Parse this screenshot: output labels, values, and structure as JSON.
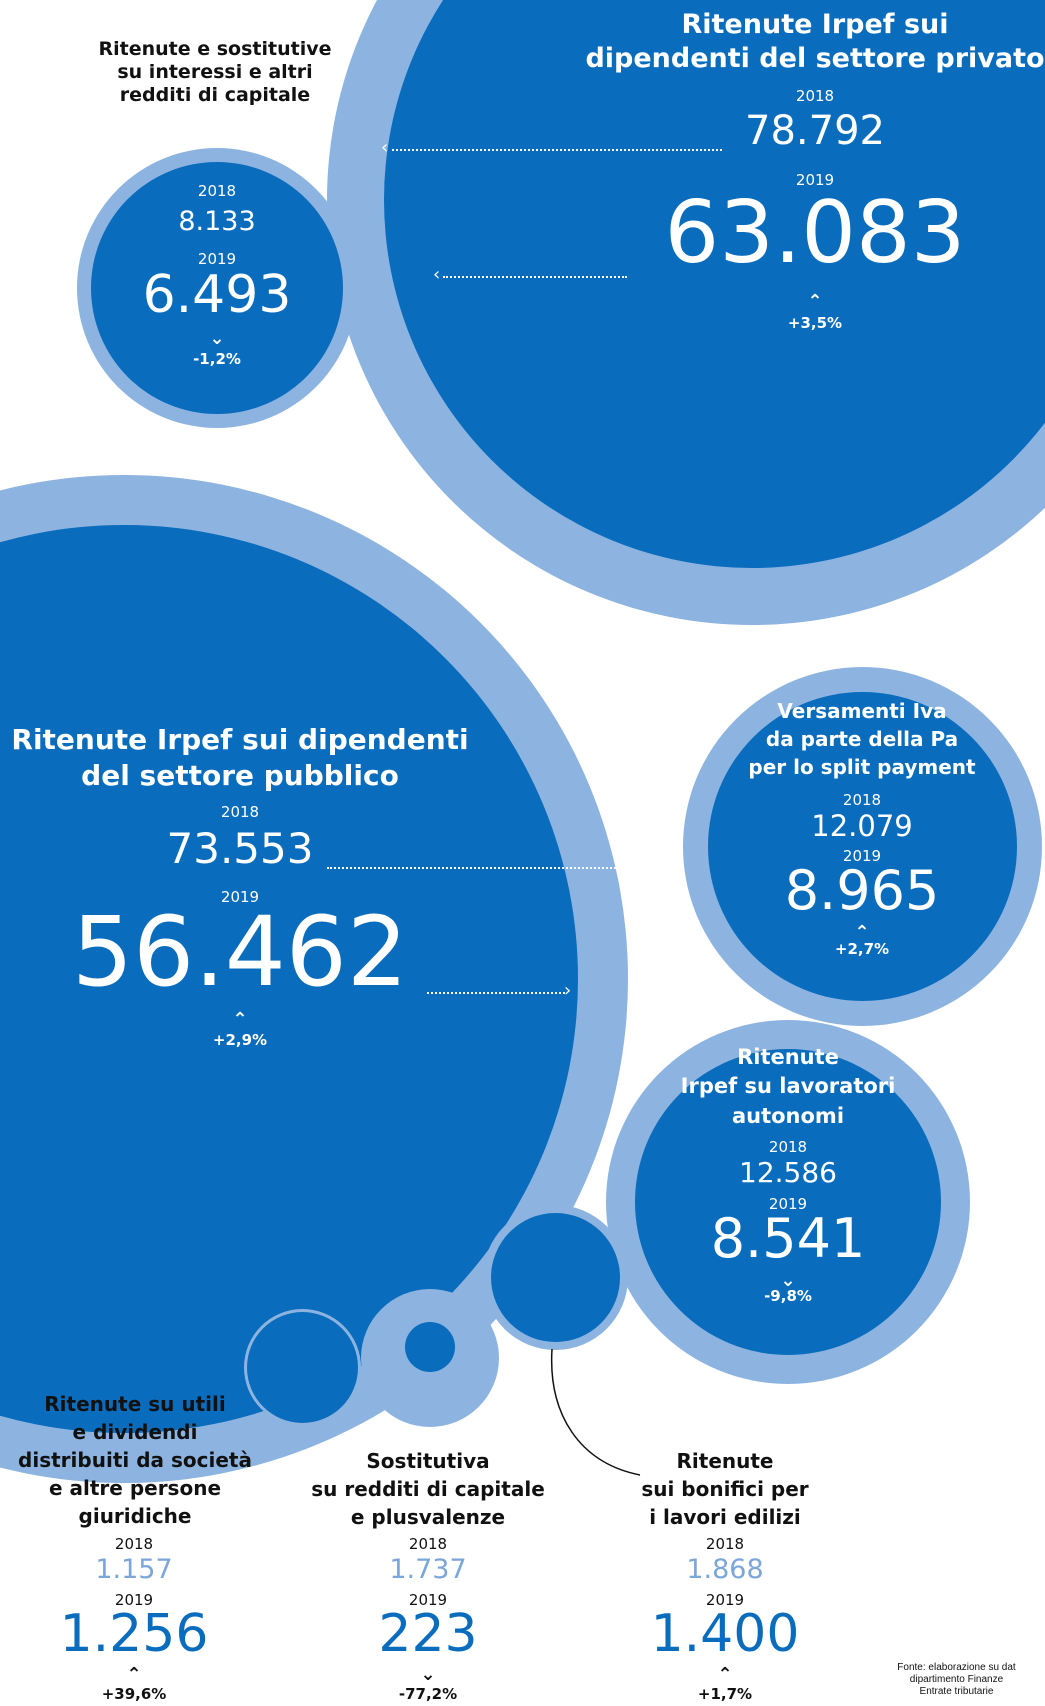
{
  "colors": {
    "dark_blue": "#0a6cbc",
    "light_blue": "#8db4e0",
    "text_dark": "#111111",
    "text_white": "#ffffff"
  },
  "icons": {
    "up": "up-chevron-icon",
    "down": "down-chevron-icon"
  },
  "items": {
    "interessi": {
      "title_lines": [
        "Ritenute e sostitutive",
        "su interessi e altri",
        "redditi di capitale"
      ],
      "year_2018": "2018",
      "value_2018": "8.133",
      "year_2019": "2019",
      "value_2019": "6.493",
      "change": "-1,2%",
      "direction": "down"
    },
    "privato": {
      "title_lines": [
        "Ritenute Irpef sui",
        "dipendenti del settore privato"
      ],
      "year_2018": "2018",
      "value_2018": "78.792",
      "year_2019": "2019",
      "value_2019": "63.083",
      "change": "+3,5%",
      "direction": "up"
    },
    "pubblico": {
      "title_lines": [
        "Ritenute Irpef sui dipendenti",
        "del settore pubblico"
      ],
      "year_2018": "2018",
      "value_2018": "73.553",
      "year_2019": "2019",
      "value_2019": "56.462",
      "change": "+2,9%",
      "direction": "up"
    },
    "iva": {
      "title_lines": [
        "Versamenti Iva",
        "da parte della Pa",
        "per lo split payment"
      ],
      "year_2018": "2018",
      "value_2018": "12.079",
      "year_2019": "2019",
      "value_2019": "8.965",
      "change": "+2,7%",
      "direction": "up"
    },
    "autonomi": {
      "title_lines": [
        "Ritenute",
        "Irpef su lavoratori",
        "autonomi"
      ],
      "year_2018": "2018",
      "value_2018": "12.586",
      "year_2019": "2019",
      "value_2019": "8.541",
      "change": "-9,8%",
      "direction": "down"
    },
    "utili": {
      "title_lines": [
        "Ritenute su utili",
        "e dividendi",
        "distribuiti da società",
        "e altre persone",
        "giuridiche"
      ],
      "year_2018": "2018",
      "value_2018": "1.157",
      "year_2019": "2019",
      "value_2019": "1.256",
      "change": "+39,6%",
      "direction": "up"
    },
    "plusvalenze": {
      "title_lines": [
        "Sostitutiva",
        "su redditi di capitale",
        "e plusvalenze"
      ],
      "year_2018": "2018",
      "value_2018": "1.737",
      "year_2019": "2019",
      "value_2019": "223",
      "change": "-77,2%",
      "direction": "down"
    },
    "bonifici": {
      "title_lines": [
        "Ritenute",
        "sui bonifici per",
        "i lavori edilizi"
      ],
      "year_2018": "2018",
      "value_2018": "1.868",
      "year_2019": "2019",
      "value_2019": "1.400",
      "change": "+1,7%",
      "direction": "up"
    }
  },
  "source_lines": [
    "Fonte: elaborazione su dat",
    "dipartimento Finanze",
    "Entrate tributarie"
  ]
}
